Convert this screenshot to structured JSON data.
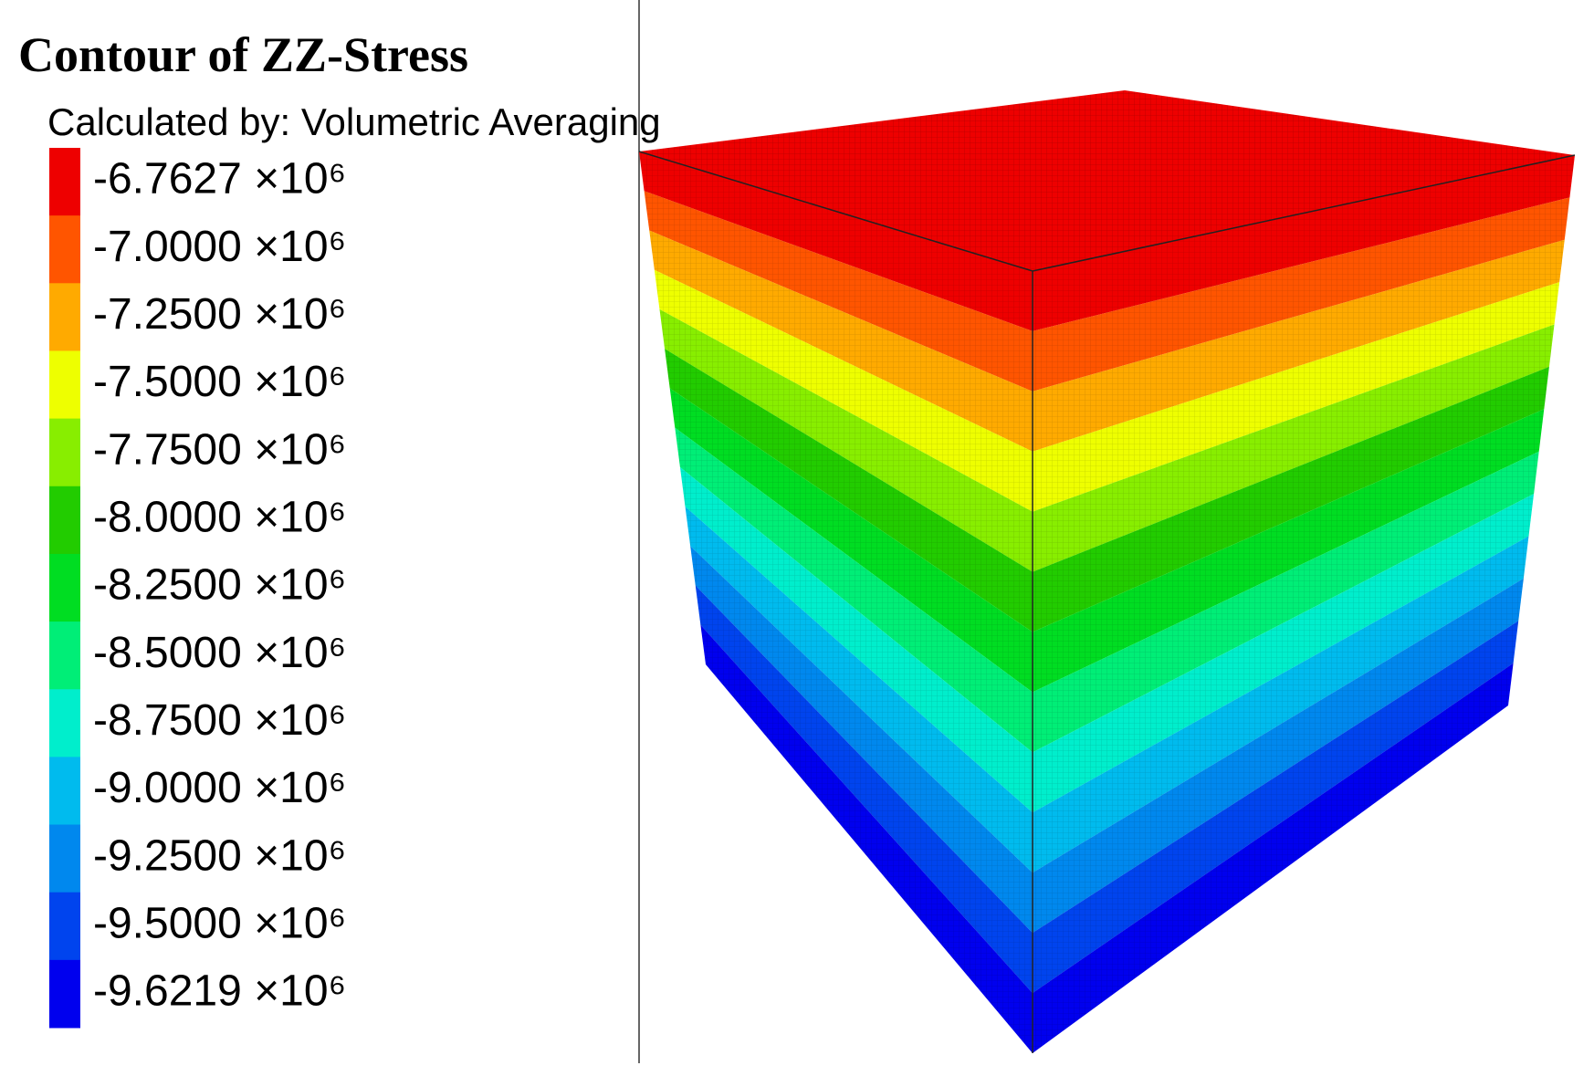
{
  "title": "Contour of ZZ-Stress",
  "subtitle": "Calculated by: Volumetric Averaging",
  "legend": {
    "entries": [
      {
        "label": "-6.7627 ×10⁶",
        "color": "#ee0000"
      },
      {
        "label": "-7.0000 ×10⁶",
        "color": "#ff5500"
      },
      {
        "label": "-7.2500 ×10⁶",
        "color": "#ffaa00"
      },
      {
        "label": "-7.5000 ×10⁶",
        "color": "#eeff00"
      },
      {
        "label": "-7.7500 ×10⁶",
        "color": "#88ee00"
      },
      {
        "label": "-8.0000 ×10⁶",
        "color": "#22cc00"
      },
      {
        "label": "-8.2500 ×10⁶",
        "color": "#00dd22"
      },
      {
        "label": "-8.5000 ×10⁶",
        "color": "#00ee77"
      },
      {
        "label": "-8.7500 ×10⁶",
        "color": "#00eecc"
      },
      {
        "label": "-9.0000 ×10⁶",
        "color": "#00bbee"
      },
      {
        "label": "-9.2500 ×10⁶",
        "color": "#0088ee"
      },
      {
        "label": "-9.5000 ×10⁶",
        "color": "#0044ee"
      },
      {
        "label": "-9.6219 ×10⁶",
        "color": "#0000ee"
      }
    ]
  }
}
